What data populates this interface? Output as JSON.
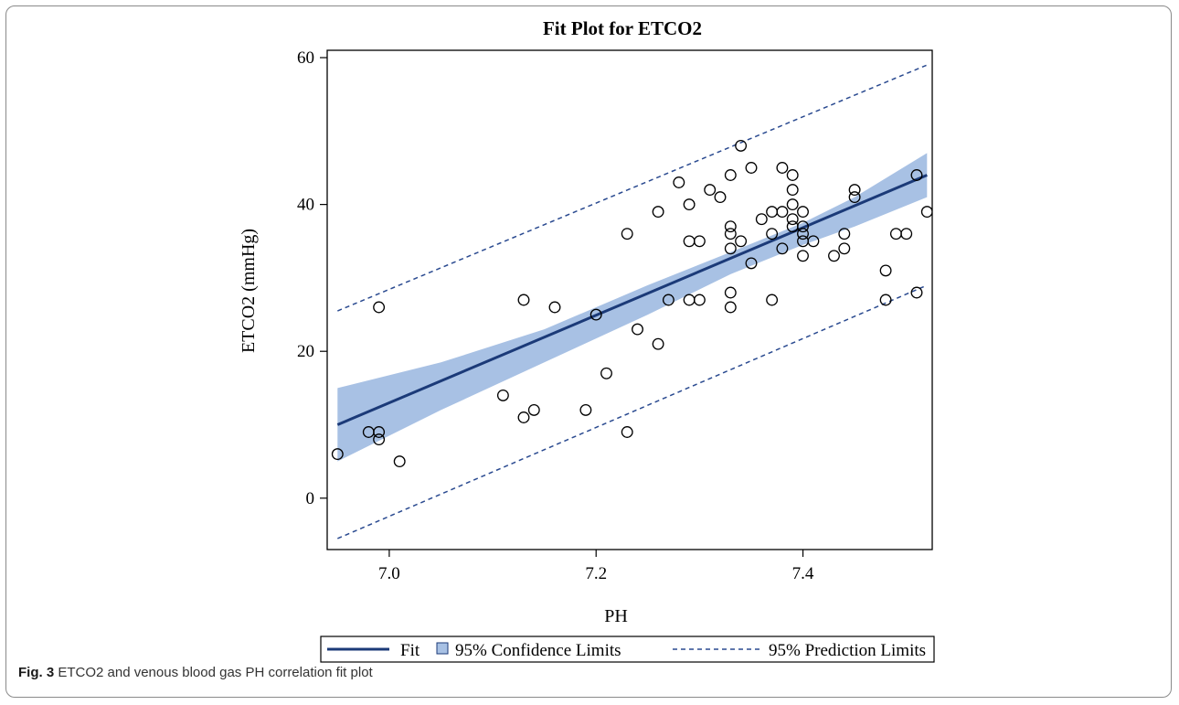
{
  "chart_data": {
    "type": "scatter",
    "title": "Fit Plot for ETCO2",
    "xlabel": "PH",
    "ylabel": "ETCO2 (mmHg)",
    "xlim": [
      6.94,
      7.525
    ],
    "ylim": [
      -7,
      61
    ],
    "xticks": [
      7.0,
      7.2,
      7.4
    ],
    "xtick_labels": [
      "7.0",
      "7.2",
      "7.4"
    ],
    "yticks": [
      0,
      20,
      40,
      60
    ],
    "ytick_labels": [
      "0",
      "20",
      "40",
      "60"
    ],
    "grid": false,
    "points": [
      {
        "x": 6.95,
        "y": 6
      },
      {
        "x": 6.98,
        "y": 9
      },
      {
        "x": 6.99,
        "y": 9
      },
      {
        "x": 6.99,
        "y": 8
      },
      {
        "x": 6.99,
        "y": 26
      },
      {
        "x": 7.01,
        "y": 5
      },
      {
        "x": 7.11,
        "y": 14
      },
      {
        "x": 7.13,
        "y": 11
      },
      {
        "x": 7.13,
        "y": 27
      },
      {
        "x": 7.14,
        "y": 12
      },
      {
        "x": 7.16,
        "y": 26
      },
      {
        "x": 7.19,
        "y": 12
      },
      {
        "x": 7.2,
        "y": 25
      },
      {
        "x": 7.21,
        "y": 17
      },
      {
        "x": 7.23,
        "y": 36
      },
      {
        "x": 7.23,
        "y": 9
      },
      {
        "x": 7.24,
        "y": 23
      },
      {
        "x": 7.26,
        "y": 39
      },
      {
        "x": 7.26,
        "y": 21
      },
      {
        "x": 7.27,
        "y": 27
      },
      {
        "x": 7.28,
        "y": 43
      },
      {
        "x": 7.29,
        "y": 40
      },
      {
        "x": 7.29,
        "y": 35
      },
      {
        "x": 7.29,
        "y": 27
      },
      {
        "x": 7.3,
        "y": 35
      },
      {
        "x": 7.3,
        "y": 27
      },
      {
        "x": 7.31,
        "y": 42
      },
      {
        "x": 7.32,
        "y": 41
      },
      {
        "x": 7.33,
        "y": 44
      },
      {
        "x": 7.33,
        "y": 37
      },
      {
        "x": 7.33,
        "y": 36
      },
      {
        "x": 7.33,
        "y": 34
      },
      {
        "x": 7.33,
        "y": 28
      },
      {
        "x": 7.33,
        "y": 26
      },
      {
        "x": 7.34,
        "y": 48
      },
      {
        "x": 7.34,
        "y": 35
      },
      {
        "x": 7.35,
        "y": 45
      },
      {
        "x": 7.35,
        "y": 32
      },
      {
        "x": 7.36,
        "y": 38
      },
      {
        "x": 7.37,
        "y": 39
      },
      {
        "x": 7.37,
        "y": 36
      },
      {
        "x": 7.37,
        "y": 27
      },
      {
        "x": 7.38,
        "y": 45
      },
      {
        "x": 7.38,
        "y": 39
      },
      {
        "x": 7.38,
        "y": 34
      },
      {
        "x": 7.39,
        "y": 44
      },
      {
        "x": 7.39,
        "y": 42
      },
      {
        "x": 7.39,
        "y": 40
      },
      {
        "x": 7.39,
        "y": 38
      },
      {
        "x": 7.39,
        "y": 37
      },
      {
        "x": 7.4,
        "y": 39
      },
      {
        "x": 7.4,
        "y": 37
      },
      {
        "x": 7.4,
        "y": 36
      },
      {
        "x": 7.4,
        "y": 35
      },
      {
        "x": 7.4,
        "y": 33
      },
      {
        "x": 7.41,
        "y": 35
      },
      {
        "x": 7.43,
        "y": 33
      },
      {
        "x": 7.44,
        "y": 36
      },
      {
        "x": 7.44,
        "y": 34
      },
      {
        "x": 7.45,
        "y": 42
      },
      {
        "x": 7.45,
        "y": 41
      },
      {
        "x": 7.48,
        "y": 31
      },
      {
        "x": 7.48,
        "y": 27
      },
      {
        "x": 7.49,
        "y": 36
      },
      {
        "x": 7.5,
        "y": 36
      },
      {
        "x": 7.51,
        "y": 44
      },
      {
        "x": 7.51,
        "y": 28
      },
      {
        "x": 7.52,
        "y": 39
      }
    ],
    "fit_line": {
      "x": [
        6.95,
        7.52
      ],
      "y": [
        10,
        44
      ]
    },
    "confidence_band": {
      "x": [
        6.95,
        7.05,
        7.15,
        7.25,
        7.33,
        7.4,
        7.45,
        7.52
      ],
      "lower": [
        5.0,
        12.0,
        18.5,
        25.0,
        30.5,
        34.5,
        37.0,
        41.0
      ],
      "upper": [
        15.0,
        18.5,
        23.0,
        29.0,
        33.5,
        37.5,
        41.0,
        47.0
      ]
    },
    "prediction_lower": {
      "x": [
        6.95,
        7.52
      ],
      "y": [
        -5.5,
        29
      ]
    },
    "prediction_upper": {
      "x": [
        6.95,
        7.52
      ],
      "y": [
        25.5,
        59
      ]
    },
    "legend_position": "bottom",
    "legend": [
      {
        "label": "Fit",
        "style": "line"
      },
      {
        "label": "95% Confidence Limits",
        "style": "band"
      },
      {
        "label": "95% Prediction Limits",
        "style": "dashed"
      }
    ],
    "colors": {
      "fit": "#1b3a78",
      "band_fill": "#a8c1e4",
      "band_stroke": "#7f9fcf",
      "prediction": "#2a4a90",
      "marker": "#000000"
    }
  },
  "caption": {
    "label": "Fig. 3",
    "text": "ETCO2 and venous blood gas PH correlation fit plot"
  }
}
